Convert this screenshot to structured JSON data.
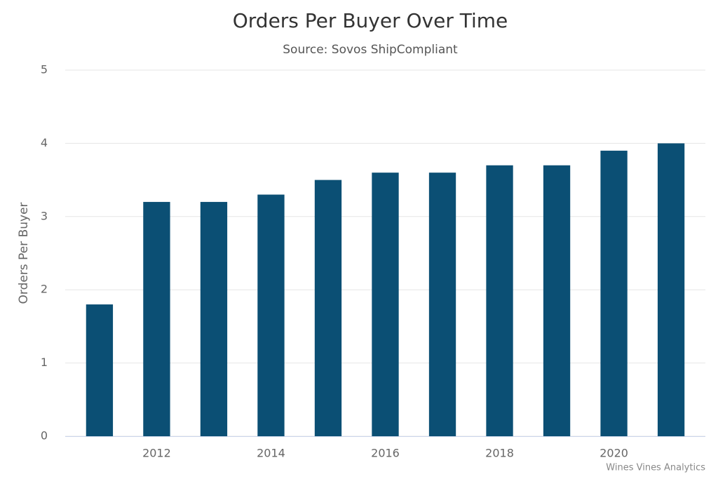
{
  "chart_data": {
    "type": "bar",
    "title": "Orders Per Buyer Over Time",
    "subtitle": "Source: Sovos ShipCompliant",
    "y_label": "Orders Per Buyer",
    "credit": "Wines Vines Analytics",
    "x": [
      2011,
      2012,
      2013,
      2014,
      2015,
      2016,
      2017,
      2018,
      2019,
      2020,
      2021
    ],
    "values": [
      1.8,
      3.2,
      3.2,
      3.3,
      3.5,
      3.6,
      3.6,
      3.7,
      3.7,
      3.9,
      4.0
    ],
    "color": "#0b4f74",
    "xlim": [
      2010.4,
      2021.6
    ],
    "xticks": [
      2012,
      2014,
      2016,
      2018,
      2020
    ],
    "ylim": [
      0,
      5
    ],
    "yticks": [
      0,
      1,
      2,
      3,
      4,
      5
    ],
    "grid": true
  }
}
